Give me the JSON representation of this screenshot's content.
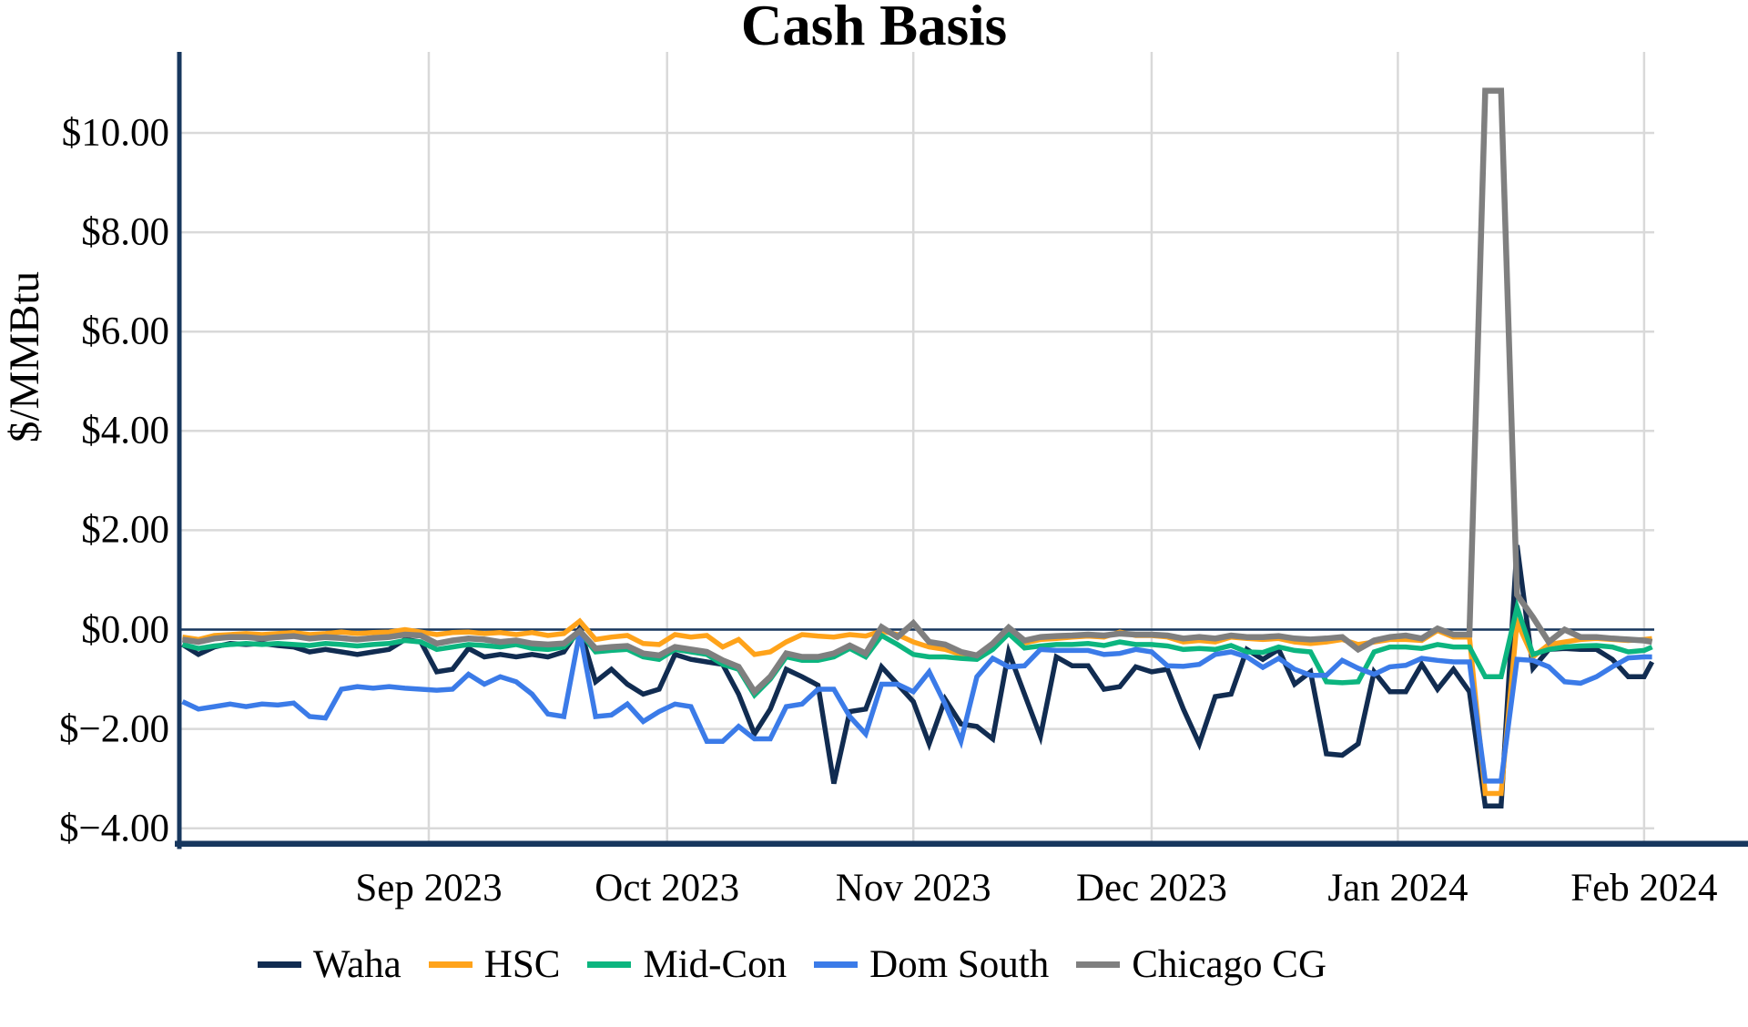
{
  "title": "Cash Basis",
  "y_axis": {
    "label": "$/MMBtu",
    "tick_labels": [
      "$10.00",
      "$8.00",
      "$6.00",
      "$4.00",
      "$2.00",
      "$0.00",
      "$−2.00",
      "$−4.00"
    ],
    "tick_values": [
      10,
      8,
      6,
      4,
      2,
      0,
      -2,
      -4
    ]
  },
  "x_axis": {
    "tick_labels": [
      "Sep 2023",
      "Oct 2023",
      "Nov 2023",
      "Dec 2023",
      "Jan 2024",
      "Feb 2024"
    ],
    "month_day_offsets": [
      31,
      61,
      92,
      122,
      153,
      184
    ]
  },
  "legend": {
    "items": [
      {
        "label": "Waha",
        "color": "#112c51"
      },
      {
        "label": "HSC",
        "color": "#ffa31a"
      },
      {
        "label": "Mid-Con",
        "color": "#0cb57f"
      },
      {
        "label": "Dom South",
        "color": "#3b7be8"
      },
      {
        "label": "Chicago CG",
        "color": "#7f7f7f"
      }
    ]
  },
  "colors": {
    "axis": "#17375e",
    "zero_line": "#17375e",
    "gridline": "#d9d9d9",
    "background": "#ffffff",
    "text": "#000000"
  },
  "chart_data": {
    "type": "line",
    "title": "Cash Basis",
    "xlabel": "",
    "ylabel": "$/MMBtu",
    "ylim": [
      -4.3,
      11.6
    ],
    "grid": true,
    "zero_line": true,
    "legend_position": "bottom",
    "x_start_date": "2023-08-01",
    "x_end_date": "2024-02-02",
    "x_days_since_start": [
      0,
      2,
      4,
      6,
      8,
      10,
      12,
      14,
      16,
      18,
      20,
      22,
      24,
      26,
      28,
      30,
      32,
      34,
      36,
      38,
      40,
      42,
      44,
      46,
      48,
      50,
      52,
      54,
      56,
      58,
      60,
      62,
      64,
      66,
      68,
      70,
      72,
      74,
      76,
      78,
      80,
      82,
      84,
      86,
      88,
      90,
      92,
      94,
      96,
      98,
      100,
      102,
      104,
      106,
      108,
      110,
      112,
      114,
      116,
      118,
      120,
      122,
      124,
      126,
      128,
      130,
      132,
      134,
      136,
      138,
      140,
      142,
      144,
      146,
      148,
      150,
      152,
      154,
      156,
      158,
      160,
      162,
      164,
      166,
      168,
      170,
      172,
      174,
      176,
      178,
      180,
      182,
      184,
      185
    ],
    "series": [
      {
        "name": "Waha",
        "color": "#112c51",
        "width": 5.5,
        "values": [
          -0.3,
          -0.5,
          -0.35,
          -0.28,
          -0.3,
          -0.28,
          -0.32,
          -0.35,
          -0.45,
          -0.4,
          -0.45,
          -0.5,
          -0.45,
          -0.4,
          -0.2,
          -0.25,
          -0.85,
          -0.8,
          -0.38,
          -0.55,
          -0.5,
          -0.55,
          -0.5,
          -0.55,
          -0.45,
          0.03,
          -1.05,
          -0.8,
          -1.1,
          -1.3,
          -1.2,
          -0.5,
          -0.6,
          -0.65,
          -0.7,
          -1.3,
          -2.1,
          -1.6,
          -0.8,
          -0.95,
          -1.12,
          -3.1,
          -1.65,
          -1.6,
          -0.75,
          -1.1,
          -1.45,
          -2.3,
          -1.4,
          -1.9,
          -1.95,
          -2.2,
          -0.45,
          -1.3,
          -2.15,
          -0.55,
          -0.73,
          -0.73,
          -1.2,
          -1.15,
          -0.75,
          -0.85,
          -0.8,
          -1.6,
          -2.3,
          -1.35,
          -1.3,
          -0.4,
          -0.6,
          -0.4,
          -1.1,
          -0.85,
          -2.5,
          -2.53,
          -2.3,
          -0.85,
          -1.25,
          -1.25,
          -0.7,
          -1.2,
          -0.8,
          -1.25,
          -3.55,
          -3.55,
          1.7,
          -0.78,
          -0.4,
          -0.38,
          -0.4,
          -0.4,
          -0.6,
          -0.95,
          -0.95,
          -0.65
        ]
      },
      {
        "name": "HSC",
        "color": "#ffa31a",
        "width": 5.5,
        "values": [
          -0.15,
          -0.2,
          -0.12,
          -0.1,
          -0.08,
          -0.1,
          -0.08,
          -0.06,
          -0.1,
          -0.08,
          -0.05,
          -0.08,
          -0.06,
          -0.05,
          0.0,
          -0.05,
          -0.1,
          -0.06,
          -0.05,
          -0.08,
          -0.06,
          -0.1,
          -0.06,
          -0.12,
          -0.08,
          0.17,
          -0.2,
          -0.15,
          -0.12,
          -0.28,
          -0.3,
          -0.1,
          -0.15,
          -0.12,
          -0.35,
          -0.2,
          -0.5,
          -0.45,
          -0.25,
          -0.1,
          -0.13,
          -0.15,
          -0.1,
          -0.13,
          -0.03,
          -0.1,
          -0.25,
          -0.35,
          -0.4,
          -0.5,
          -0.55,
          -0.3,
          0.0,
          -0.27,
          -0.2,
          -0.18,
          -0.15,
          -0.13,
          -0.15,
          -0.05,
          -0.12,
          -0.12,
          -0.15,
          -0.25,
          -0.22,
          -0.25,
          -0.15,
          -0.18,
          -0.2,
          -0.18,
          -0.25,
          -0.28,
          -0.25,
          -0.2,
          -0.3,
          -0.25,
          -0.2,
          -0.2,
          -0.22,
          -0.02,
          -0.15,
          -0.15,
          -3.3,
          -3.3,
          0.15,
          -0.55,
          -0.3,
          -0.25,
          -0.2,
          -0.18,
          -0.2,
          -0.22,
          -0.2,
          -0.18
        ]
      },
      {
        "name": "Mid-Con",
        "color": "#0cb57f",
        "width": 5.5,
        "values": [
          -0.3,
          -0.38,
          -0.33,
          -0.3,
          -0.28,
          -0.3,
          -0.28,
          -0.3,
          -0.32,
          -0.28,
          -0.3,
          -0.33,
          -0.3,
          -0.28,
          -0.22,
          -0.25,
          -0.4,
          -0.35,
          -0.3,
          -0.32,
          -0.35,
          -0.3,
          -0.38,
          -0.4,
          -0.35,
          -0.05,
          -0.45,
          -0.42,
          -0.4,
          -0.55,
          -0.6,
          -0.4,
          -0.45,
          -0.5,
          -0.7,
          -0.8,
          -1.32,
          -1.0,
          -0.55,
          -0.62,
          -0.62,
          -0.55,
          -0.38,
          -0.55,
          -0.12,
          -0.3,
          -0.5,
          -0.55,
          -0.55,
          -0.58,
          -0.6,
          -0.4,
          -0.08,
          -0.37,
          -0.33,
          -0.3,
          -0.3,
          -0.28,
          -0.32,
          -0.25,
          -0.3,
          -0.3,
          -0.33,
          -0.4,
          -0.38,
          -0.4,
          -0.32,
          -0.45,
          -0.46,
          -0.35,
          -0.42,
          -0.45,
          -1.05,
          -1.07,
          -1.05,
          -0.45,
          -0.35,
          -0.35,
          -0.38,
          -0.3,
          -0.35,
          -0.35,
          -0.95,
          -0.95,
          0.45,
          -0.5,
          -0.4,
          -0.35,
          -0.33,
          -0.32,
          -0.35,
          -0.45,
          -0.42,
          -0.35
        ]
      },
      {
        "name": "Dom South",
        "color": "#3b7be8",
        "width": 5.5,
        "values": [
          -1.45,
          -1.6,
          -1.55,
          -1.5,
          -1.55,
          -1.5,
          -1.52,
          -1.48,
          -1.75,
          -1.78,
          -1.2,
          -1.15,
          -1.18,
          -1.15,
          -1.18,
          -1.2,
          -1.22,
          -1.2,
          -0.9,
          -1.1,
          -0.95,
          -1.05,
          -1.3,
          -1.7,
          -1.75,
          -0.05,
          -1.75,
          -1.72,
          -1.5,
          -1.85,
          -1.65,
          -1.5,
          -1.55,
          -2.25,
          -2.25,
          -1.95,
          -2.2,
          -2.2,
          -1.55,
          -1.5,
          -1.2,
          -1.2,
          -1.75,
          -2.1,
          -1.1,
          -1.1,
          -1.25,
          -0.85,
          -1.5,
          -2.25,
          -0.95,
          -0.58,
          -0.75,
          -0.73,
          -0.4,
          -0.42,
          -0.42,
          -0.42,
          -0.5,
          -0.48,
          -0.4,
          -0.45,
          -0.73,
          -0.74,
          -0.7,
          -0.5,
          -0.45,
          -0.55,
          -0.76,
          -0.58,
          -0.8,
          -0.92,
          -0.92,
          -0.62,
          -0.78,
          -0.9,
          -0.75,
          -0.72,
          -0.58,
          -0.62,
          -0.65,
          -0.65,
          -3.05,
          -3.05,
          -0.6,
          -0.62,
          -0.75,
          -1.05,
          -1.08,
          -0.95,
          -0.75,
          -0.57,
          -0.55,
          -0.55
        ]
      },
      {
        "name": "Chicago CG",
        "color": "#7f7f7f",
        "width": 6.5,
        "values": [
          -0.2,
          -0.25,
          -0.18,
          -0.15,
          -0.15,
          -0.18,
          -0.15,
          -0.13,
          -0.18,
          -0.15,
          -0.17,
          -0.2,
          -0.17,
          -0.15,
          -0.1,
          -0.12,
          -0.28,
          -0.22,
          -0.18,
          -0.2,
          -0.25,
          -0.22,
          -0.28,
          -0.3,
          -0.28,
          -0.03,
          -0.38,
          -0.35,
          -0.33,
          -0.48,
          -0.52,
          -0.35,
          -0.4,
          -0.45,
          -0.62,
          -0.75,
          -1.25,
          -0.95,
          -0.48,
          -0.55,
          -0.55,
          -0.48,
          -0.32,
          -0.48,
          0.05,
          -0.15,
          0.13,
          -0.25,
          -0.3,
          -0.45,
          -0.52,
          -0.28,
          0.04,
          -0.22,
          -0.15,
          -0.13,
          -0.12,
          -0.1,
          -0.12,
          -0.08,
          -0.1,
          -0.1,
          -0.12,
          -0.18,
          -0.15,
          -0.18,
          -0.12,
          -0.15,
          -0.15,
          -0.13,
          -0.18,
          -0.2,
          -0.18,
          -0.15,
          -0.4,
          -0.22,
          -0.15,
          -0.12,
          -0.18,
          0.02,
          -0.1,
          -0.1,
          10.85,
          10.85,
          0.7,
          0.25,
          -0.25,
          0.0,
          -0.15,
          -0.15,
          -0.18,
          -0.2,
          -0.22,
          -0.25
        ]
      }
    ]
  }
}
